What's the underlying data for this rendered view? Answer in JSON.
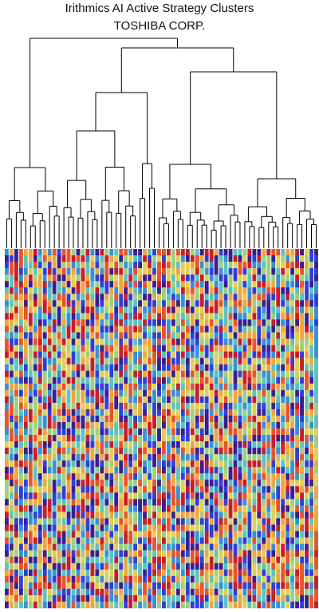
{
  "title": "Irithmics AI Active Strategy Clusters",
  "subtitle": "TOSHIBA CORP.",
  "chart_data": {
    "type": "heatmap",
    "title": "Irithmics AI Active Strategy Clusters",
    "subtitle": "TOSHIBA CORP.",
    "colormap": [
      "#3a1f8f",
      "#2f3fd8",
      "#3a8fd6",
      "#5cc3c0",
      "#9fcf7f",
      "#e2cf58",
      "#f0a640",
      "#e8542c",
      "#c81e2a"
    ],
    "n_rows": 56,
    "n_columns": 66,
    "grid": false,
    "dendrogram": "top",
    "dendrogram_linkage_heights": [
      1.0,
      0.95,
      0.9,
      0.75,
      0.63,
      0.57,
      0.42,
      0.35,
      0.3,
      0.28,
      0.27,
      0.25,
      0.24,
      0.22,
      0.2,
      0.18,
      0.16,
      0.14,
      0.12,
      0.1,
      0.08,
      0.06,
      0.04
    ]
  }
}
